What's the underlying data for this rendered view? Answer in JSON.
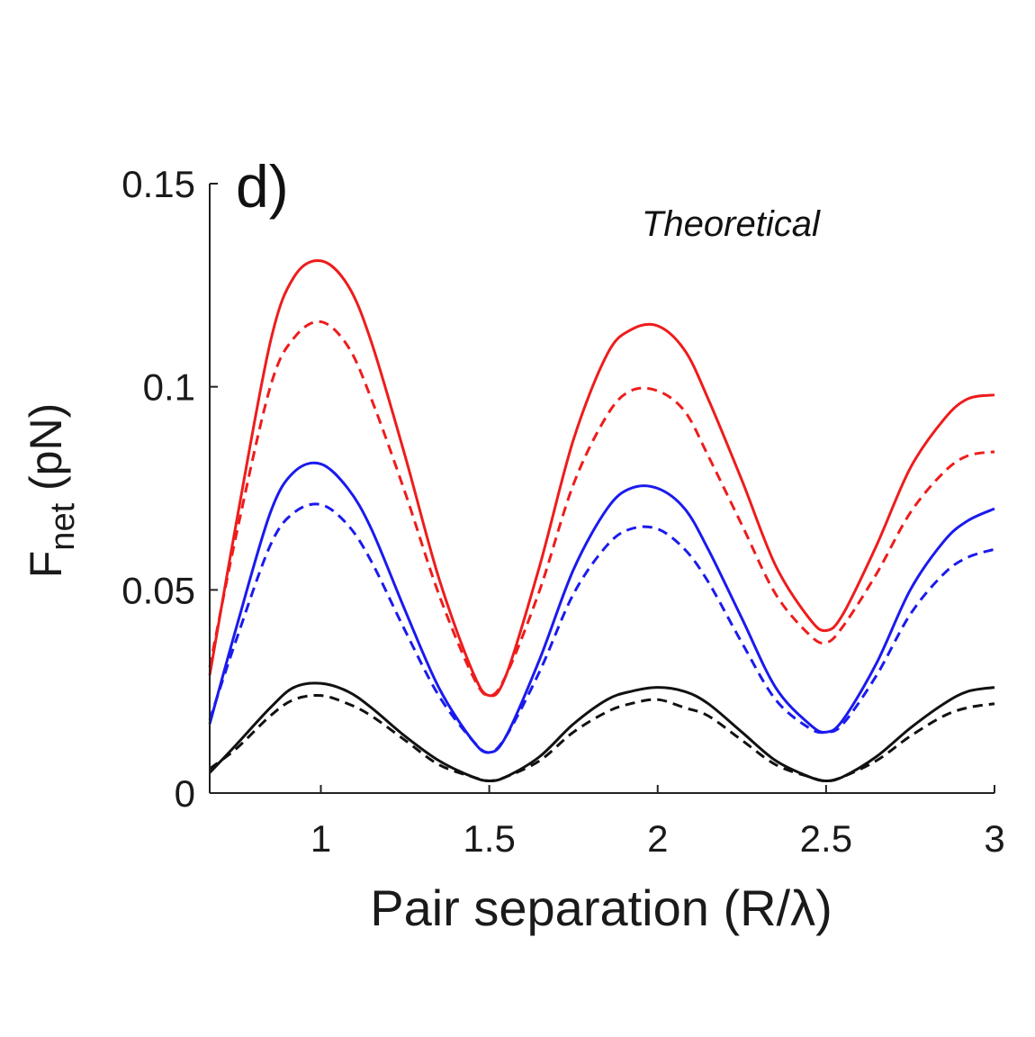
{
  "chart_data": {
    "type": "line",
    "panel_label": "d)",
    "annotation": "Theoretical",
    "xlabel": "Pair separation (R/λ)",
    "ylabel_main": "F",
    "ylabel_sub": "net",
    "ylabel_unit": " (pN)",
    "xlim": [
      0.67,
      3.0
    ],
    "ylim": [
      0,
      0.15
    ],
    "xticks": [
      {
        "value": 1,
        "label": "1"
      },
      {
        "value": 1.5,
        "label": "1.5"
      },
      {
        "value": 2,
        "label": "2"
      },
      {
        "value": 2.5,
        "label": "2.5"
      },
      {
        "value": 3,
        "label": "3"
      }
    ],
    "yticks": [
      {
        "value": 0,
        "label": "0"
      },
      {
        "value": 0.05,
        "label": "0.05"
      },
      {
        "value": 0.1,
        "label": "0.1"
      },
      {
        "value": 0.15,
        "label": "0.15"
      }
    ],
    "grid": false,
    "series": [
      {
        "color": "#ee1c1c",
        "style": "solid",
        "x": [
          0.67,
          0.75,
          0.85,
          0.92,
          1.0,
          1.08,
          1.15,
          1.25,
          1.35,
          1.45,
          1.5,
          1.55,
          1.65,
          1.75,
          1.85,
          1.92,
          2.0,
          2.08,
          2.15,
          2.25,
          2.35,
          2.45,
          2.5,
          2.55,
          2.65,
          2.75,
          2.85,
          2.92,
          3.0
        ],
        "y": [
          0.029,
          0.067,
          0.111,
          0.127,
          0.131,
          0.125,
          0.111,
          0.083,
          0.053,
          0.03,
          0.024,
          0.029,
          0.056,
          0.087,
          0.108,
          0.114,
          0.115,
          0.109,
          0.097,
          0.077,
          0.056,
          0.043,
          0.04,
          0.044,
          0.061,
          0.08,
          0.092,
          0.097,
          0.098
        ]
      },
      {
        "color": "#ee1c1c",
        "style": "dashed",
        "x": [
          0.67,
          0.75,
          0.85,
          0.92,
          1.0,
          1.08,
          1.15,
          1.25,
          1.35,
          1.45,
          1.5,
          1.55,
          1.65,
          1.75,
          1.85,
          1.92,
          2.0,
          2.08,
          2.15,
          2.25,
          2.35,
          2.45,
          2.5,
          2.55,
          2.65,
          2.75,
          2.85,
          2.92,
          3.0
        ],
        "y": [
          0.031,
          0.064,
          0.1,
          0.112,
          0.116,
          0.11,
          0.097,
          0.074,
          0.049,
          0.029,
          0.024,
          0.029,
          0.05,
          0.076,
          0.093,
          0.099,
          0.099,
          0.094,
          0.083,
          0.066,
          0.049,
          0.039,
          0.037,
          0.041,
          0.054,
          0.069,
          0.079,
          0.083,
          0.084
        ]
      },
      {
        "color": "#1a1aee",
        "style": "solid",
        "x": [
          0.67,
          0.75,
          0.85,
          0.92,
          1.0,
          1.08,
          1.15,
          1.25,
          1.35,
          1.45,
          1.5,
          1.55,
          1.65,
          1.75,
          1.85,
          1.92,
          2.0,
          2.08,
          2.15,
          2.25,
          2.35,
          2.45,
          2.5,
          2.55,
          2.65,
          2.75,
          2.85,
          2.92,
          3.0
        ],
        "y": [
          0.017,
          0.041,
          0.069,
          0.079,
          0.081,
          0.075,
          0.065,
          0.045,
          0.026,
          0.013,
          0.01,
          0.014,
          0.033,
          0.055,
          0.07,
          0.075,
          0.075,
          0.07,
          0.06,
          0.043,
          0.026,
          0.017,
          0.015,
          0.018,
          0.032,
          0.05,
          0.062,
          0.067,
          0.07
        ]
      },
      {
        "color": "#1a1aee",
        "style": "dashed",
        "x": [
          0.67,
          0.75,
          0.85,
          0.92,
          1.0,
          1.08,
          1.15,
          1.25,
          1.35,
          1.45,
          1.5,
          1.55,
          1.65,
          1.75,
          1.85,
          1.92,
          2.0,
          2.08,
          2.15,
          2.25,
          2.35,
          2.45,
          2.5,
          2.55,
          2.65,
          2.75,
          2.85,
          2.92,
          3.0
        ],
        "y": [
          0.018,
          0.038,
          0.061,
          0.069,
          0.071,
          0.066,
          0.057,
          0.04,
          0.024,
          0.013,
          0.01,
          0.014,
          0.03,
          0.049,
          0.061,
          0.065,
          0.065,
          0.06,
          0.052,
          0.037,
          0.023,
          0.016,
          0.015,
          0.017,
          0.029,
          0.044,
          0.054,
          0.058,
          0.06
        ]
      },
      {
        "color": "#111111",
        "style": "solid",
        "x": [
          0.67,
          0.75,
          0.85,
          0.92,
          1.0,
          1.08,
          1.15,
          1.25,
          1.35,
          1.45,
          1.5,
          1.55,
          1.65,
          1.75,
          1.85,
          1.92,
          2.0,
          2.08,
          2.15,
          2.25,
          2.35,
          2.45,
          2.5,
          2.55,
          2.65,
          2.75,
          2.85,
          2.92,
          3.0
        ],
        "y": [
          0.005,
          0.012,
          0.021,
          0.026,
          0.027,
          0.025,
          0.021,
          0.014,
          0.008,
          0.004,
          0.003,
          0.004,
          0.009,
          0.017,
          0.023,
          0.025,
          0.026,
          0.025,
          0.022,
          0.015,
          0.008,
          0.004,
          0.003,
          0.004,
          0.009,
          0.016,
          0.022,
          0.025,
          0.026
        ]
      },
      {
        "color": "#111111",
        "style": "dashed",
        "x": [
          0.67,
          0.75,
          0.85,
          0.92,
          1.0,
          1.08,
          1.15,
          1.25,
          1.35,
          1.45,
          1.5,
          1.55,
          1.65,
          1.75,
          1.85,
          1.92,
          2.0,
          2.08,
          2.15,
          2.25,
          2.35,
          2.45,
          2.5,
          2.55,
          2.65,
          2.75,
          2.85,
          2.92,
          3.0
        ],
        "y": [
          0.006,
          0.011,
          0.019,
          0.023,
          0.024,
          0.022,
          0.019,
          0.013,
          0.007,
          0.004,
          0.003,
          0.004,
          0.008,
          0.015,
          0.02,
          0.022,
          0.023,
          0.021,
          0.019,
          0.013,
          0.007,
          0.004,
          0.003,
          0.004,
          0.008,
          0.014,
          0.019,
          0.021,
          0.022
        ]
      }
    ]
  }
}
